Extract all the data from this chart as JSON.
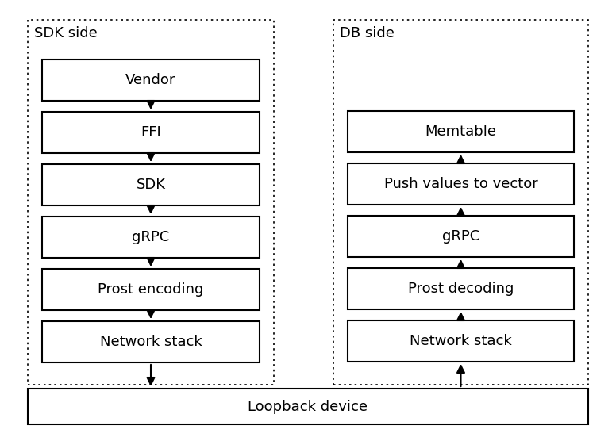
{
  "background_color": "#ffffff",
  "sdk_label": "SDK side",
  "db_label": "DB side",
  "loopback_label": "Loopback device",
  "sdk_boxes": [
    "Vendor",
    "FFI",
    "SDK",
    "gRPC",
    "Prost encoding",
    "Network stack"
  ],
  "db_boxes": [
    "Memtable",
    "Push values to vector",
    "gRPC",
    "Prost decoding",
    "Network stack"
  ],
  "font_size": 13,
  "label_font_size": 13
}
